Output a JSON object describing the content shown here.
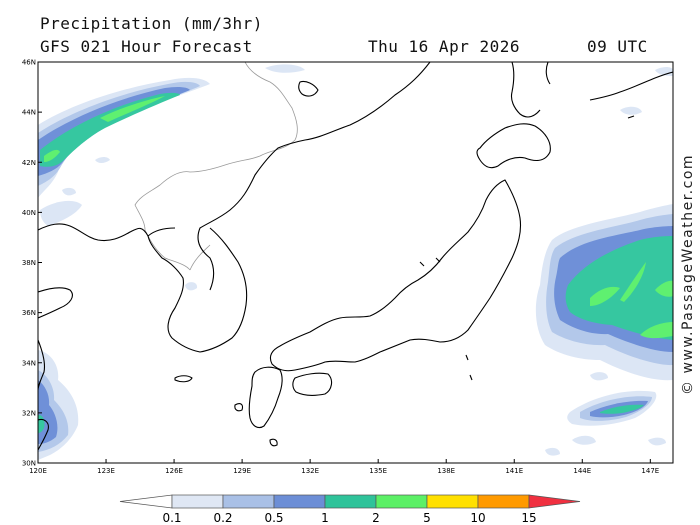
{
  "header": {
    "title": "Precipitation (mm/3hr)",
    "subtitle": "GFS 021 Hour Forecast",
    "valid_date": "Thu 16 Apr 2026",
    "valid_time": "09 UTC"
  },
  "map": {
    "projection": "equirectangular",
    "lon_range": [
      120,
      148
    ],
    "lat_range": [
      30,
      46
    ],
    "lat_labels": [
      "46N",
      "44N",
      "42N",
      "40N",
      "38N",
      "36N",
      "34N",
      "32N",
      "30N"
    ],
    "lon_labels": [
      "120E",
      "123E",
      "126E",
      "129E",
      "132E",
      "135E",
      "138E",
      "141E",
      "144E",
      "147E"
    ],
    "colors": {
      "land_line": "#000000",
      "border_line": "#9a9a9a",
      "precip_0_1": "#dce6f5",
      "precip_0_2": "#b3c8ea",
      "precip_0_5": "#6f90d8",
      "precip_1": "#36c7a0",
      "precip_2": "#5ff070"
    }
  },
  "scale": {
    "labels": [
      "0.1",
      "0.2",
      "0.5",
      "1",
      "2",
      "5",
      "10",
      "15"
    ],
    "colors": [
      "#ffffff",
      "#dfe7f4",
      "#a9c0e6",
      "#6c8ed6",
      "#2fc39a",
      "#5cf066",
      "#ffe000",
      "#ff9a00",
      "#f03040"
    ]
  },
  "credit": "© www.PassageWeather.com"
}
